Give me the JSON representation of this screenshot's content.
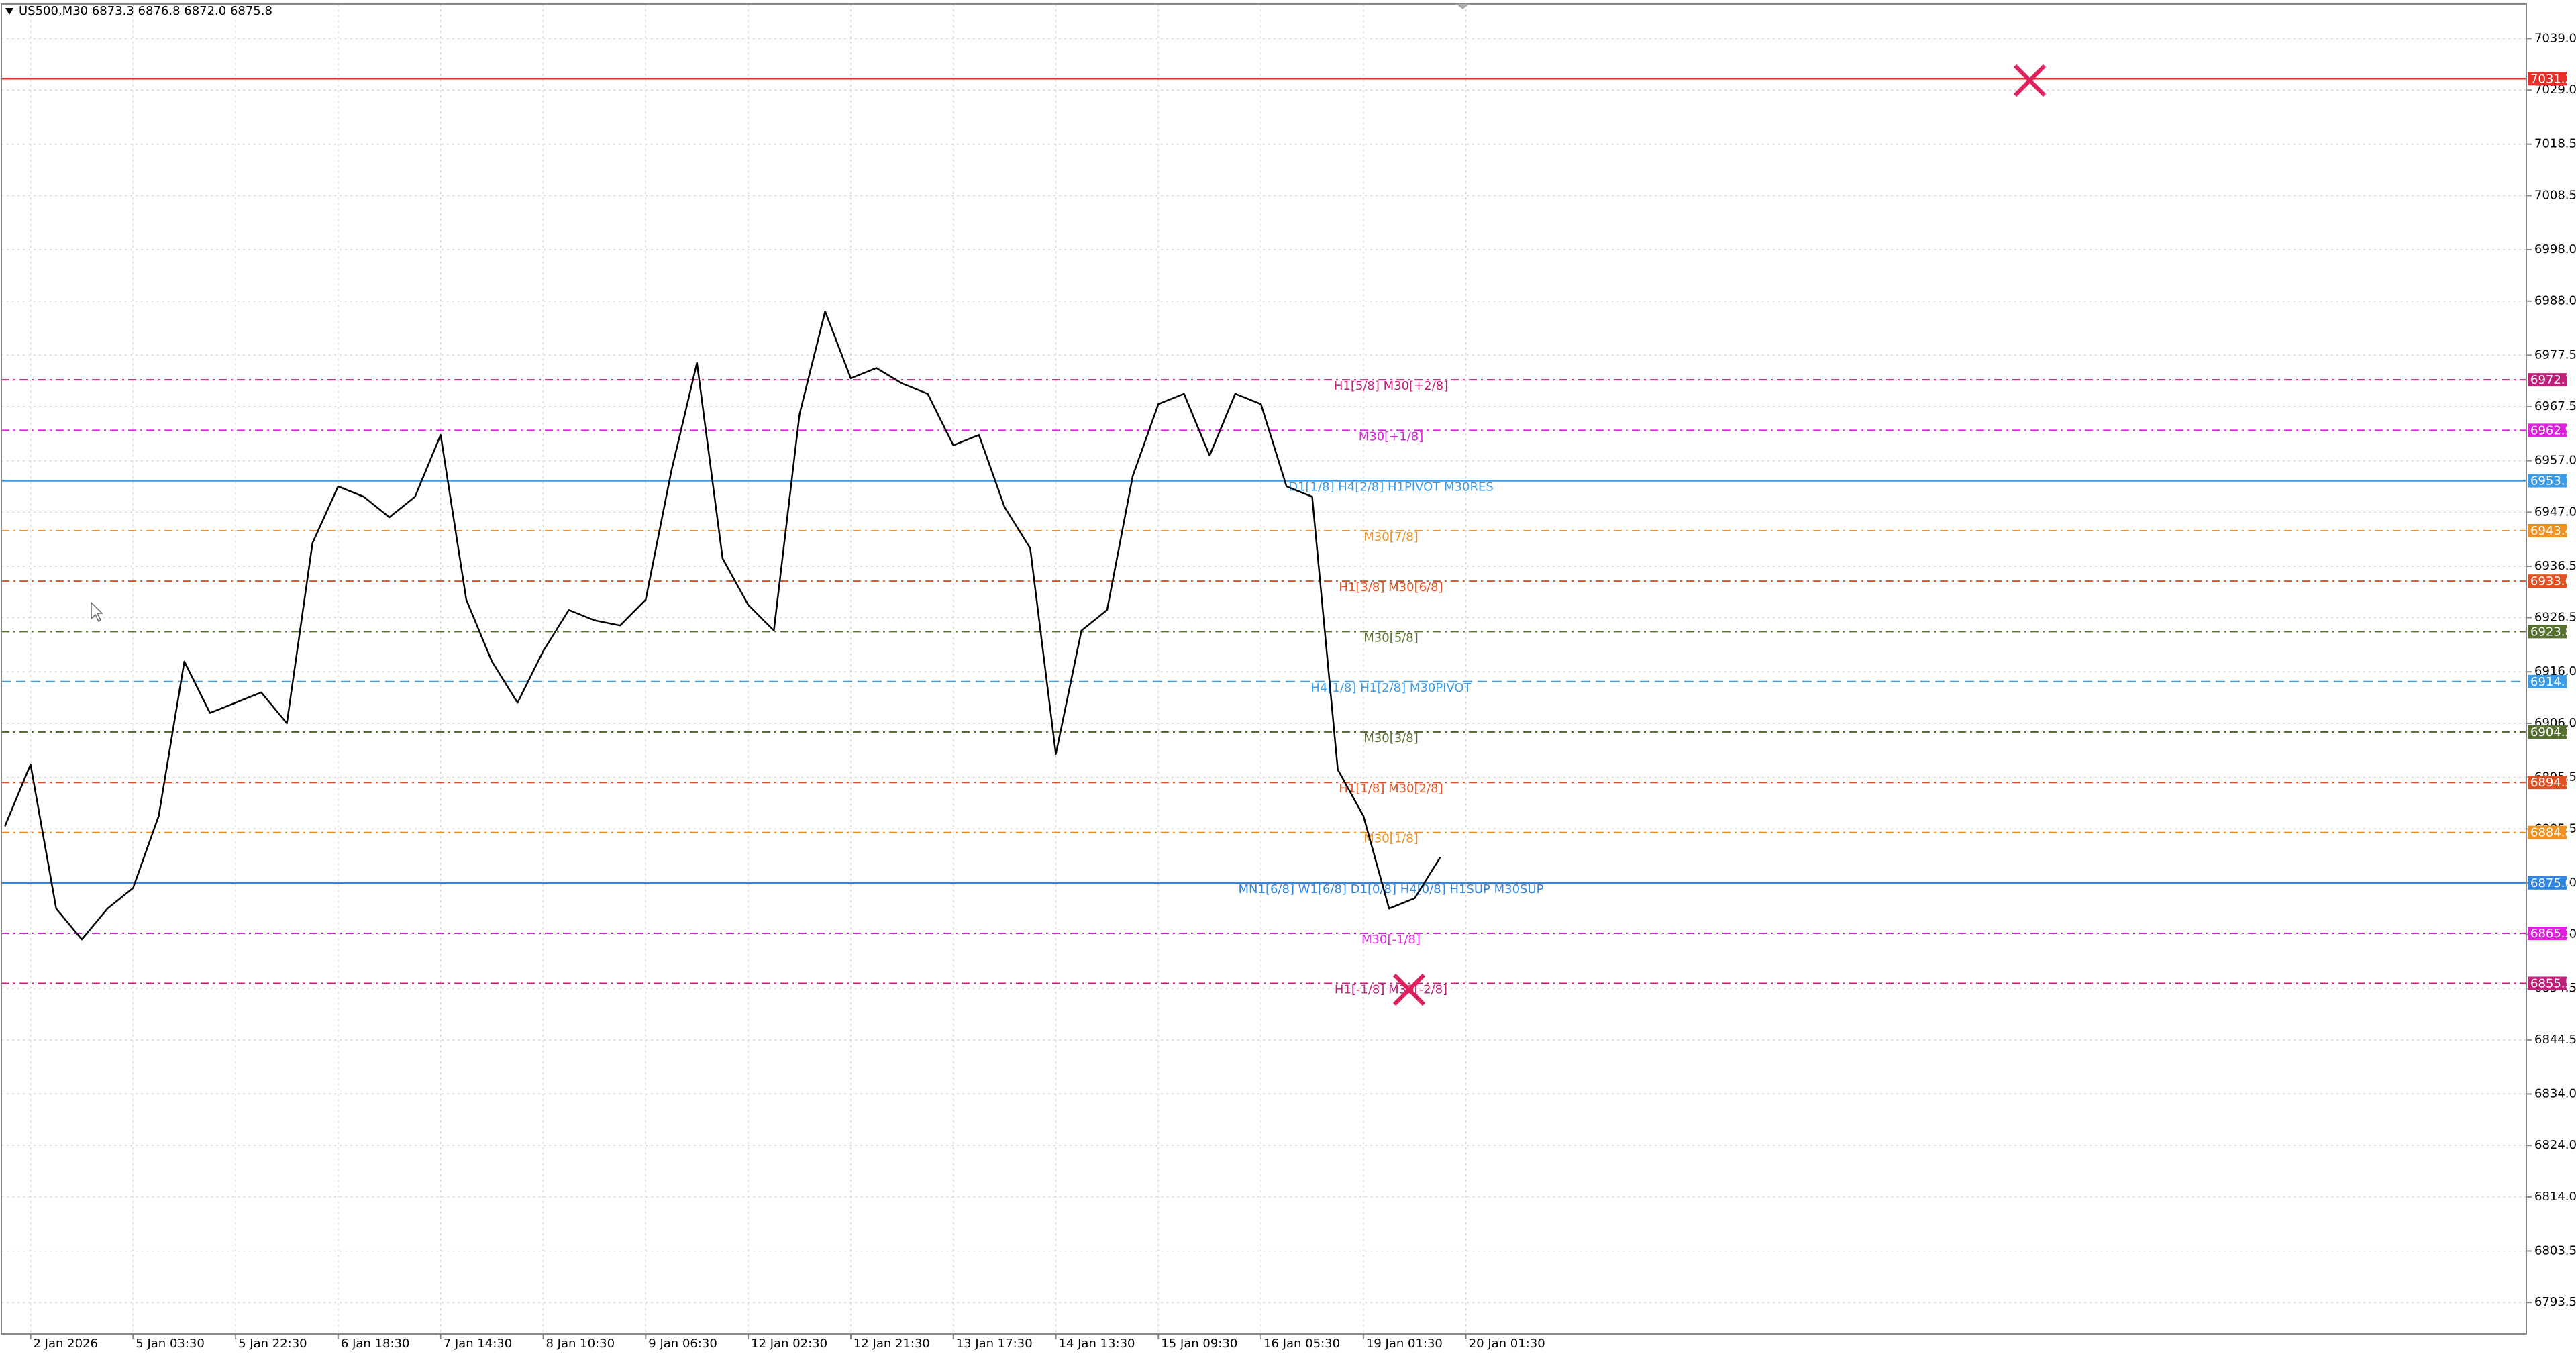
{
  "chart_data": {
    "type": "line",
    "title": "US500,M30  6873.3 6876.8 6872.0 6875.8",
    "categories": [
      null,
      "2 Jan 2026",
      null,
      null,
      null,
      "5 Jan 03:30",
      null,
      null,
      null,
      "5 Jan 22:30",
      null,
      null,
      null,
      "6 Jan 18:30",
      null,
      null,
      null,
      "7 Jan 14:30",
      null,
      null,
      null,
      "8 Jan 10:30",
      null,
      null,
      null,
      "9 Jan 06:30",
      null,
      null,
      null,
      "12 Jan 02:30",
      null,
      null,
      null,
      "12 Jan 21:30",
      null,
      null,
      null,
      "13 Jan 17:30",
      null,
      null,
      null,
      "14 Jan 13:30",
      null,
      null,
      null,
      "15 Jan 09:30",
      null,
      null,
      null,
      "16 Jan 05:30",
      null,
      null,
      null,
      "19 Jan 01:30",
      null,
      null,
      null,
      "20 Jan 01:30"
    ],
    "series": [
      {
        "name": "US500,M30",
        "color": "#000000",
        "values": [
          6886,
          6898,
          6870,
          6864,
          6870,
          6874,
          6888,
          6918,
          6908,
          6910,
          6912,
          6906,
          6941,
          6952,
          6950,
          6946,
          6950,
          6962,
          6930,
          6918,
          6910,
          6920,
          6928,
          6926,
          6925,
          6930,
          6955,
          6976,
          6938,
          6929,
          6924,
          6966,
          6986,
          6973,
          6975,
          6972,
          6970,
          6960,
          6962,
          6948,
          6940,
          6900,
          6924,
          6928,
          6954,
          6968,
          6970,
          6958,
          6970,
          6968,
          6952,
          6950,
          6897,
          6888,
          6870,
          6872,
          6880,
          null
        ]
      }
    ],
    "ylim": [
      6787.4,
      7045.7
    ],
    "yticks": [
      {
        "value": 7039.0,
        "label": "7039.0"
      },
      {
        "value": 7029.0,
        "label": "7029.0"
      },
      7018.5,
      7008.5,
      {
        "value": 6998.0,
        "label": "6998.0"
      },
      {
        "value": 6988.0,
        "label": "6988.0"
      },
      6977.5,
      6967.5,
      {
        "value": 6957.0,
        "label": "6957.0"
      },
      {
        "value": 6947.0,
        "label": "6947.0"
      },
      6936.5,
      6926.5,
      {
        "value": 6916.0,
        "label": "6916.0"
      },
      {
        "value": 6906.0,
        "label": "6906.0"
      },
      6895.5,
      6885.5,
      {
        "value": 6875.0,
        "label": "6875.0"
      },
      {
        "value": 6865.0,
        "label": "6865.0"
      },
      6854.5,
      6844.5,
      {
        "value": 6834.0,
        "label": "6834.0"
      },
      {
        "value": 6824.0,
        "label": "6824.0"
      },
      {
        "value": 6814.0,
        "label": "6814.0"
      },
      6803.5,
      6793.5
    ],
    "grid": true,
    "levels": [
      {
        "value": 7031.2,
        "color": "#e8302a",
        "style": "solid"
      },
      {
        "value": 6972.7,
        "label": "H1[5/8] M30[+2/8]",
        "color": "#c0207a",
        "style": "dashdot"
      },
      {
        "value": 6962.9,
        "label": "M30[+1/8]",
        "color": "#e020e0",
        "style": "dashdot"
      },
      {
        "value": 6953.1,
        "label": "D1[1/8] H4[2/8] H1PIVOT M30RES",
        "color": "#3a9be8",
        "style": "solid"
      },
      {
        "value": 6943.4,
        "label": "M30[7/8]",
        "color": "#f09020",
        "style": "dashdot"
      },
      {
        "value": 6933.6,
        "label": "H1[3/8] M30[6/8]",
        "color": "#e05020",
        "style": "dashdot"
      },
      {
        "value": 6923.8,
        "label": "M30[5/8]",
        "color": "#55702f",
        "style": "dashdot"
      },
      {
        "value": 6914.1,
        "label": "H4[1/8] H1[2/8] M30PIVOT",
        "color": "#3a9be8",
        "style": "dashed"
      },
      {
        "value": 6904.3,
        "label": "M30[3/8]",
        "color": "#55702f",
        "style": "dashdot"
      },
      {
        "value": 6894.5,
        "label": "H1[1/8] M30[2/8]",
        "color": "#e05020",
        "style": "dashdot"
      },
      {
        "value": 6884.8,
        "label": "M30[1/8]",
        "color": "#f09020",
        "style": "dashdot"
      },
      {
        "value": 6875.0,
        "value_label": "6875.0",
        "label": "MN1[6/8] W1[6/8] D1[0/8] H4[0/8] H1SUP M30SUP",
        "color": "#2f86e0",
        "style": "solid"
      },
      {
        "value": 6865.2,
        "label": "M30[-1/8]",
        "color": "#e020e0",
        "style": "dashdot"
      },
      {
        "value": 6855.5,
        "label": "H1[-1/8] M30[-2/8]",
        "color": "#c0207a",
        "style": "dashdot"
      }
    ]
  }
}
